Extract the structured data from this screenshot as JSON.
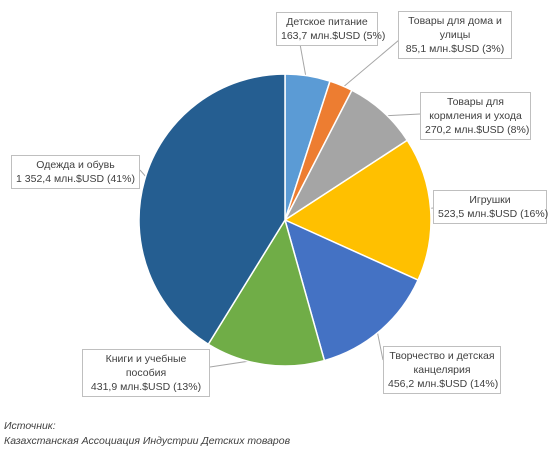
{
  "chart_data": {
    "type": "pie",
    "unit": "млн.$USD",
    "slices": [
      {
        "name": "Детское питание",
        "value": 163.7,
        "value_label": "163,7 млн.$USD (5%)",
        "color": "#5b9bd5"
      },
      {
        "name": "Товары для дома и улицы",
        "value": 85.1,
        "value_label": "85,1 млн.$USD (3%)",
        "color": "#ed7d31"
      },
      {
        "name": "Товары для кормления и ухода",
        "value": 270.2,
        "value_label": "270,2 млн.$USD (8%)",
        "color": "#a5a5a5"
      },
      {
        "name": "Игрушки",
        "value": 523.5,
        "value_label": "523,5 млн.$USD (16%)",
        "color": "#ffc000"
      },
      {
        "name": "Творчество и детская канцелярия",
        "value": 456.2,
        "value_label": "456,2 млн.$USD (14%)",
        "color": "#4472c4"
      },
      {
        "name": "Книги и учебные пособия",
        "value": 431.9,
        "value_label": "431,9 млн.$USD (13%)",
        "color": "#70ad47"
      },
      {
        "name": "Одежда и обувь",
        "value": 1352.4,
        "value_label": "1 352,4 млн.$USD (41%)",
        "color": "#255e91"
      }
    ]
  },
  "labels": [
    {
      "lines": [
        "Детское питание",
        "163,7 млн.$USD (5%)"
      ]
    },
    {
      "lines": [
        "Товары для дома и",
        "улицы",
        "85,1 млн.$USD (3%)"
      ]
    },
    {
      "lines": [
        "Товары для",
        "кормления и ухода",
        "270,2 млн.$USD (8%)"
      ]
    },
    {
      "lines": [
        "Игрушки",
        "523,5 млн.$USD (16%)"
      ]
    },
    {
      "lines": [
        "Творчество и детская",
        "канцелярия",
        "456,2 млн.$USD (14%)"
      ]
    },
    {
      "lines": [
        "Книги и учебные",
        "пособия",
        "431,9 млн.$USD (13%)"
      ]
    },
    {
      "lines": [
        "Одежда и обувь",
        "1 352,4 млн.$USD (41%)"
      ]
    }
  ],
  "source": {
    "heading": "Источник:",
    "text": "Казахстанская Ассоциация  Индустрии Детских товаров"
  }
}
